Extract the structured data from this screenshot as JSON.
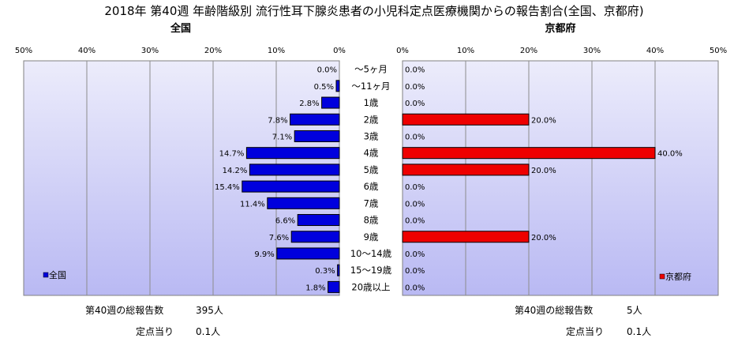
{
  "title": "2018年 第40週 年齢階級別 流行性耳下腺炎患者の小児科定点医療機関からの報告割合(全国、京都府)",
  "colors": {
    "plot_bg_top": "#ececfb",
    "plot_bg_bottom": "#b9b9f3",
    "grid": "#8c8c8c",
    "national_bar": "#0000dd",
    "kyoto_bar": "#ee0000"
  },
  "chart_data": [
    {
      "type": "bar",
      "orientation": "horizontal",
      "direction": "right-to-left",
      "panel_title": "全国",
      "categories": [
        "～5ヶ月",
        "～11ヶ月",
        "1歳",
        "2歳",
        "3歳",
        "4歳",
        "5歳",
        "6歳",
        "7歳",
        "8歳",
        "9歳",
        "10～14歳",
        "15～19歳",
        "20歳以上"
      ],
      "values": [
        0.0,
        0.5,
        2.8,
        7.8,
        7.1,
        14.7,
        14.2,
        15.4,
        11.4,
        6.6,
        7.6,
        9.9,
        0.3,
        1.8
      ],
      "value_labels": [
        "0.0%",
        "0.5%",
        "2.8%",
        "7.8%",
        "7.1%",
        "14.7%",
        "14.2%",
        "15.4%",
        "11.4%",
        "6.6%",
        "7.6%",
        "9.9%",
        "0.3%",
        "1.8%"
      ],
      "xlim": [
        0,
        50
      ],
      "x_ticks": [
        "50%",
        "40%",
        "30%",
        "20%",
        "10%",
        "0%"
      ],
      "grid": true,
      "legend": {
        "label": "全国",
        "position": "bottom-left"
      }
    },
    {
      "type": "bar",
      "orientation": "horizontal",
      "direction": "left-to-right",
      "panel_title": "京都府",
      "categories": [
        "～5ヶ月",
        "～11ヶ月",
        "1歳",
        "2歳",
        "3歳",
        "4歳",
        "5歳",
        "6歳",
        "7歳",
        "8歳",
        "9歳",
        "10～14歳",
        "15～19歳",
        "20歳以上"
      ],
      "values": [
        0.0,
        0.0,
        0.0,
        20.0,
        0.0,
        40.0,
        20.0,
        0.0,
        0.0,
        0.0,
        20.0,
        0.0,
        0.0,
        0.0
      ],
      "value_labels": [
        "0.0%",
        "0.0%",
        "0.0%",
        "20.0%",
        "0.0%",
        "40.0%",
        "20.0%",
        "0.0%",
        "0.0%",
        "0.0%",
        "20.0%",
        "0.0%",
        "0.0%",
        "0.0%"
      ],
      "xlim": [
        0,
        50
      ],
      "x_ticks": [
        "0%",
        "10%",
        "20%",
        "30%",
        "40%",
        "50%"
      ],
      "grid": true,
      "legend": {
        "label": "京都府",
        "position": "bottom-right"
      }
    }
  ],
  "footer": {
    "national": {
      "total_label": "第40週の総報告数",
      "total_value": "395人",
      "per_site_label": "定点当り",
      "per_site_value": "0.1人"
    },
    "kyoto": {
      "total_label": "第40週の総報告数",
      "total_value": "5人",
      "per_site_label": "定点当り",
      "per_site_value": "0.1人"
    }
  }
}
